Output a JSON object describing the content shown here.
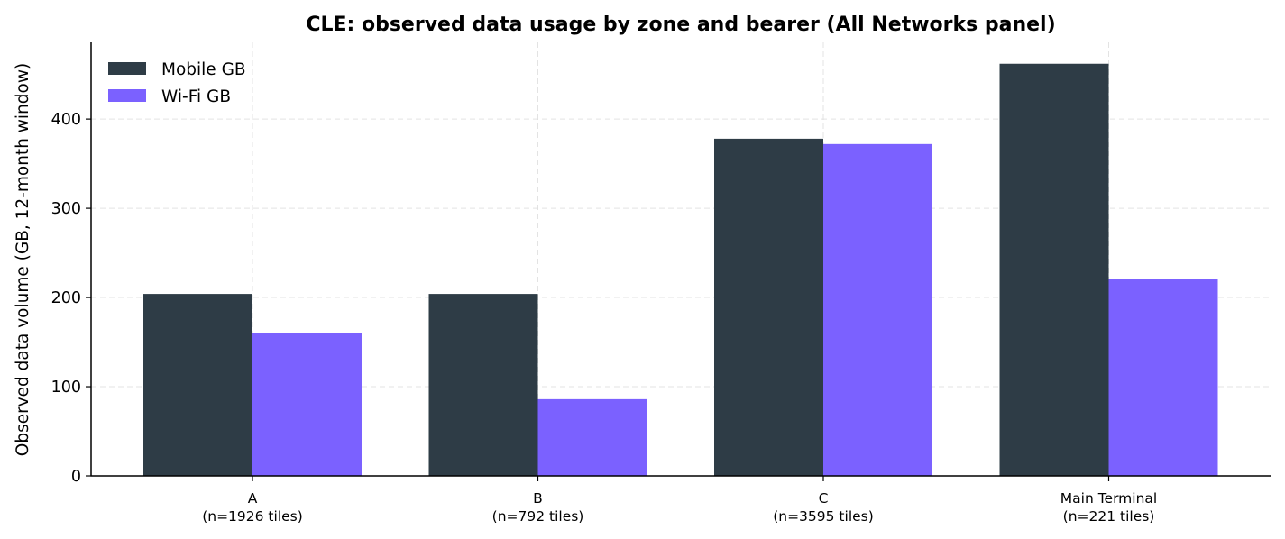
{
  "chart_data": {
    "type": "bar",
    "title": "CLE: observed data usage by zone and bearer (All Networks panel)",
    "xlabel": "",
    "ylabel": "Observed data volume (GB, 12-month window)",
    "categories": [
      "A",
      "B",
      "C",
      "Main Terminal"
    ],
    "category_sublabels": [
      "(n=1926 tiles)",
      "(n=792 tiles)",
      "(n=3595 tiles)",
      "(n=221 tiles)"
    ],
    "series": [
      {
        "name": "Mobile GB",
        "color": "#2e3c46",
        "values": [
          204,
          204,
          378,
          462
        ]
      },
      {
        "name": "Wi-Fi GB",
        "color": "#7b61ff",
        "values": [
          160,
          86,
          372,
          221
        ]
      }
    ],
    "ylim": [
      0,
      486
    ],
    "yticks": [
      0,
      100,
      200,
      300,
      400
    ],
    "grid": true,
    "legend_position": "top-left"
  }
}
